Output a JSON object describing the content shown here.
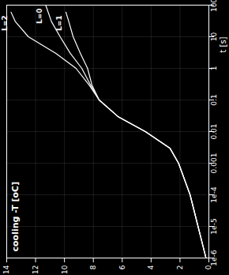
{
  "chart_data": {
    "type": "line",
    "x_label": "cooling -T [oC]",
    "y_label": "t [s]",
    "log": "y",
    "grid": true,
    "xlim": [
      14,
      0
    ],
    "xticks": [
      0,
      2,
      4,
      6,
      8,
      10,
      12,
      14
    ],
    "ylim": [
      1e-06,
      100
    ],
    "yticks": [
      {
        "value": 1e-06,
        "label": "1e-6"
      },
      {
        "value": 1e-05,
        "label": "1e-5"
      },
      {
        "value": 0.0001,
        "label": "1e-4"
      },
      0.001,
      0.01,
      0.1,
      1,
      10,
      100
    ],
    "series": [
      {
        "name": "L=2",
        "color": "#ffffff",
        "x": [
          0.2,
          0.75,
          1.3,
          2.1,
          2.7,
          4.4,
          6.3,
          7.6,
          8.3,
          9.2,
          10.6,
          12.5,
          13.4,
          13.7
        ],
        "values": [
          1e-06,
          1e-05,
          0.0001,
          0.001,
          0.003,
          0.01,
          0.03,
          0.1,
          0.3,
          1,
          3,
          10,
          30,
          60
        ]
      },
      {
        "name": "L=0",
        "color": "#ffffff",
        "x": [
          0.2,
          0.75,
          1.3,
          2.1,
          2.7,
          4.4,
          6.3,
          7.6,
          8.2,
          8.8,
          9.6,
          10.3,
          10.9,
          11.3
        ],
        "values": [
          1e-06,
          1e-05,
          0.0001,
          0.001,
          0.003,
          0.01,
          0.03,
          0.1,
          0.3,
          1,
          3,
          10,
          30,
          100
        ]
      },
      {
        "name": "L=1",
        "color": "#ffffff",
        "x": [
          0.2,
          0.75,
          1.3,
          2.1,
          2.7,
          4.4,
          6.3,
          7.6,
          8.1,
          8.4,
          8.9,
          9.4,
          9.7,
          9.9
        ],
        "values": [
          1e-06,
          1e-05,
          0.0001,
          0.001,
          0.003,
          0.01,
          0.03,
          0.1,
          0.3,
          1,
          3,
          10,
          30,
          60
        ]
      }
    ]
  }
}
